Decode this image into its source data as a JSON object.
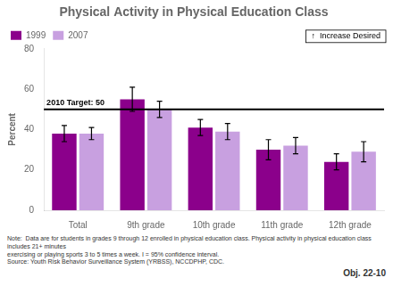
{
  "chart_data": {
    "type": "bar",
    "title": "Physical Activity in Physical Education Class",
    "ylabel": "Percent",
    "categories": [
      "Total",
      "9th grade",
      "10th grade",
      "11th grade",
      "12th grade"
    ],
    "series": [
      {
        "name": "1999",
        "color": "#8B008B",
        "values": [
          38,
          55,
          41,
          30,
          24
        ],
        "errors": [
          4,
          6,
          4,
          5,
          4
        ]
      },
      {
        "name": "2007",
        "color": "#C8A0E0",
        "values": [
          38,
          50,
          39,
          32,
          29
        ],
        "errors": [
          3,
          4,
          4,
          4,
          5
        ]
      }
    ],
    "ylim": [
      0,
      80
    ],
    "yticks": [
      0,
      20,
      40,
      60,
      80
    ],
    "grid": false,
    "legend": "top",
    "target": {
      "value": 50,
      "label": "2010 Target: 50"
    },
    "increase_label": "↑  Increase Desired",
    "note": "Note:  Data are for students in grades 9 through 12 enrolled in physical education class. Physical activity in physical education class includes 21+ minutes\nexercising or playing sports 3 to 5 times a week. I = 95% confidence interval.\nSource: Youth Risk Behavior Surveillance System (YRBSS), NCCDPHP, CDC.",
    "obj_label": "Obj. 22-10"
  }
}
